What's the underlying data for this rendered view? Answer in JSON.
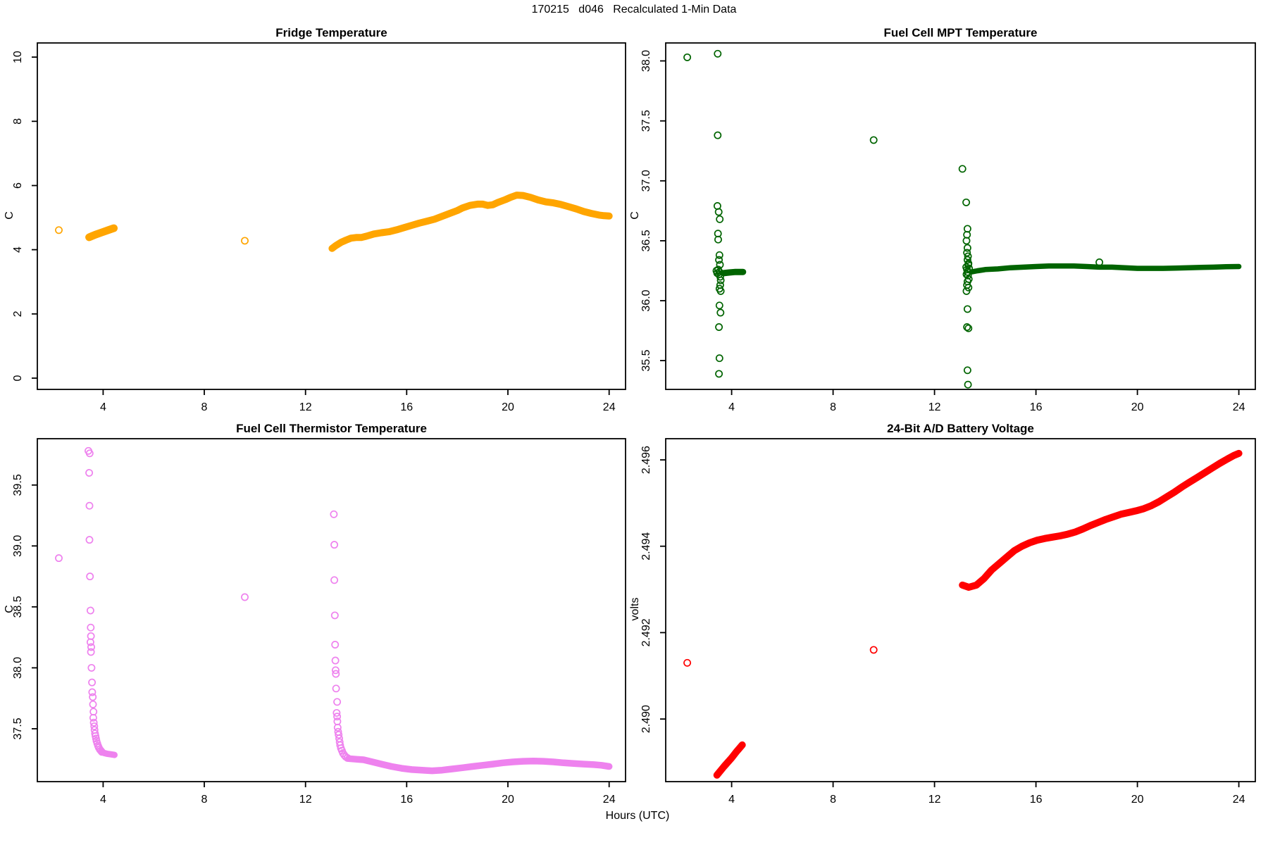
{
  "page": {
    "title": "170215   d046   Recalculated 1-Min Data",
    "xlabel": "Hours (UTC)"
  },
  "chart_data": [
    {
      "id": "fridge",
      "type": "scatter",
      "title": "Fridge Temperature",
      "ylabel": "C",
      "color": "#FFA500",
      "xlim": [
        1.4,
        24.65
      ],
      "ylim": [
        -0.35,
        10.44
      ],
      "xticks": [
        4,
        8,
        12,
        16,
        20,
        24
      ],
      "yticks": [
        0,
        2,
        4,
        6,
        8,
        10
      ],
      "ytick_labels": [
        "0",
        "2",
        "4",
        "6",
        "8",
        "10"
      ],
      "points": [
        [
          2.25,
          4.61
        ],
        [
          9.6,
          4.28
        ]
      ],
      "runs": [
        {
          "width": 11,
          "pts": [
            [
              3.45,
              4.39
            ],
            [
              3.7,
              4.47
            ],
            [
              3.95,
              4.54
            ],
            [
              4.2,
              4.61
            ],
            [
              4.42,
              4.67
            ]
          ]
        },
        {
          "width": 10,
          "pts": [
            [
              13.05,
              4.04
            ],
            [
              13.2,
              4.13
            ],
            [
              13.4,
              4.23
            ],
            [
              13.6,
              4.3
            ],
            [
              13.8,
              4.36
            ],
            [
              14.0,
              4.38
            ],
            [
              14.2,
              4.38
            ],
            [
              14.4,
              4.42
            ],
            [
              14.7,
              4.49
            ],
            [
              15.0,
              4.53
            ],
            [
              15.3,
              4.56
            ],
            [
              15.6,
              4.62
            ],
            [
              15.9,
              4.69
            ],
            [
              16.2,
              4.76
            ],
            [
              16.5,
              4.83
            ],
            [
              16.8,
              4.89
            ],
            [
              17.1,
              4.95
            ],
            [
              17.4,
              5.04
            ],
            [
              17.7,
              5.13
            ],
            [
              18.0,
              5.22
            ],
            [
              18.2,
              5.3
            ],
            [
              18.5,
              5.38
            ],
            [
              18.8,
              5.42
            ],
            [
              19.0,
              5.42
            ],
            [
              19.2,
              5.38
            ],
            [
              19.4,
              5.4
            ],
            [
              19.6,
              5.47
            ],
            [
              19.9,
              5.56
            ],
            [
              20.1,
              5.63
            ],
            [
              20.35,
              5.7
            ],
            [
              20.6,
              5.69
            ],
            [
              20.9,
              5.63
            ],
            [
              21.2,
              5.55
            ],
            [
              21.5,
              5.49
            ],
            [
              21.8,
              5.46
            ],
            [
              22.1,
              5.41
            ],
            [
              22.4,
              5.34
            ],
            [
              22.7,
              5.27
            ],
            [
              23.0,
              5.19
            ],
            [
              23.3,
              5.13
            ],
            [
              23.6,
              5.08
            ],
            [
              23.8,
              5.06
            ],
            [
              24.0,
              5.05
            ]
          ]
        }
      ]
    },
    {
      "id": "mpt",
      "type": "scatter",
      "title": "Fuel Cell MPT Temperature",
      "ylabel": "C",
      "color": "#006400",
      "xlim": [
        1.4,
        24.65
      ],
      "ylim": [
        35.26,
        38.15
      ],
      "xticks": [
        4,
        8,
        12,
        16,
        20,
        24
      ],
      "yticks": [
        35.5,
        36.0,
        36.5,
        37.0,
        37.5,
        38.0
      ],
      "ytick_labels": [
        "35.5",
        "36.0",
        "36.5",
        "37.0",
        "37.5",
        "38.0"
      ],
      "points": [
        [
          2.25,
          38.03
        ],
        [
          3.45,
          38.06
        ],
        [
          3.45,
          37.38
        ],
        [
          9.6,
          37.34
        ],
        [
          13.1,
          37.1
        ],
        [
          3.44,
          36.79
        ],
        [
          3.49,
          36.74
        ],
        [
          3.53,
          36.68
        ],
        [
          3.46,
          36.56
        ],
        [
          3.47,
          36.51
        ],
        [
          3.52,
          36.38
        ],
        [
          3.5,
          36.34
        ],
        [
          3.54,
          36.3
        ],
        [
          3.4,
          36.25
        ],
        [
          3.43,
          36.23
        ],
        [
          3.47,
          36.26
        ],
        [
          3.5,
          36.22
        ],
        [
          3.52,
          36.24
        ],
        [
          3.55,
          36.2
        ],
        [
          3.57,
          36.17
        ],
        [
          3.55,
          36.13
        ],
        [
          3.52,
          36.1
        ],
        [
          3.57,
          36.08
        ],
        [
          3.52,
          35.96
        ],
        [
          3.56,
          35.9
        ],
        [
          3.5,
          35.78
        ],
        [
          3.52,
          35.52
        ],
        [
          3.5,
          35.39
        ],
        [
          13.25,
          36.82
        ],
        [
          13.3,
          36.6
        ],
        [
          13.28,
          36.55
        ],
        [
          13.26,
          36.5
        ],
        [
          13.3,
          36.44
        ],
        [
          13.28,
          36.4
        ],
        [
          13.32,
          36.37
        ],
        [
          13.3,
          36.34
        ],
        [
          13.34,
          36.31
        ],
        [
          13.25,
          36.28
        ],
        [
          13.28,
          36.26
        ],
        [
          13.33,
          36.3
        ],
        [
          13.36,
          36.27
        ],
        [
          13.3,
          36.24
        ],
        [
          13.26,
          36.22
        ],
        [
          13.32,
          36.21
        ],
        [
          13.35,
          36.18
        ],
        [
          13.3,
          36.16
        ],
        [
          13.28,
          36.13
        ],
        [
          13.34,
          36.11
        ],
        [
          13.26,
          36.08
        ],
        [
          13.3,
          35.93
        ],
        [
          13.28,
          35.78
        ],
        [
          13.34,
          35.77
        ],
        [
          13.3,
          35.42
        ],
        [
          13.32,
          35.3
        ],
        [
          18.5,
          36.32
        ]
      ],
      "runs": [
        {
          "width": 9,
          "pts": [
            [
              3.68,
              36.23
            ],
            [
              3.9,
              36.235
            ],
            [
              4.15,
              36.24
            ],
            [
              4.45,
              36.24
            ]
          ]
        },
        {
          "width": 7.5,
          "pts": [
            [
              13.45,
              36.24
            ],
            [
              13.7,
              36.25
            ],
            [
              14.0,
              36.26
            ],
            [
              14.5,
              36.265
            ],
            [
              15.0,
              36.275
            ],
            [
              15.5,
              36.28
            ],
            [
              16.0,
              36.285
            ],
            [
              16.5,
              36.29
            ],
            [
              17.0,
              36.29
            ],
            [
              17.5,
              36.29
            ],
            [
              18.0,
              36.285
            ],
            [
              18.5,
              36.28
            ],
            [
              19.0,
              36.28
            ],
            [
              19.5,
              36.275
            ],
            [
              20.0,
              36.27
            ],
            [
              20.5,
              36.27
            ],
            [
              21.0,
              36.27
            ],
            [
              21.5,
              36.272
            ],
            [
              22.0,
              36.275
            ],
            [
              22.5,
              36.278
            ],
            [
              23.0,
              36.28
            ],
            [
              23.5,
              36.283
            ],
            [
              24.0,
              36.285
            ]
          ]
        }
      ]
    },
    {
      "id": "thermistor",
      "type": "scatter",
      "title": "Fuel Cell Thermistor Temperature",
      "ylabel": "C",
      "color": "#EE82EE",
      "xlim": [
        1.4,
        24.65
      ],
      "ylim": [
        37.066,
        39.88
      ],
      "xticks": [
        4,
        8,
        12,
        16,
        20,
        24
      ],
      "yticks": [
        37.5,
        38.0,
        38.5,
        39.0,
        39.5
      ],
      "ytick_labels": [
        "37.5",
        "38.0",
        "38.5",
        "39.0",
        "39.5"
      ],
      "points": [
        [
          2.25,
          38.9
        ],
        [
          9.6,
          38.58
        ],
        [
          3.42,
          39.78
        ],
        [
          3.47,
          39.76
        ],
        [
          3.45,
          39.6
        ],
        [
          3.46,
          39.33
        ],
        [
          3.46,
          39.05
        ],
        [
          3.48,
          38.75
        ],
        [
          3.5,
          38.47
        ],
        [
          3.51,
          38.33
        ],
        [
          3.52,
          38.26
        ],
        [
          3.5,
          38.21
        ],
        [
          3.53,
          38.17
        ],
        [
          3.52,
          38.13
        ],
        [
          3.54,
          38.0
        ],
        [
          3.56,
          37.88
        ],
        [
          3.57,
          37.8
        ],
        [
          3.59,
          37.76
        ],
        [
          3.6,
          37.7
        ],
        [
          3.62,
          37.64
        ],
        [
          3.61,
          37.59
        ],
        [
          3.63,
          37.55
        ],
        [
          3.65,
          37.52
        ],
        [
          3.66,
          37.49
        ],
        [
          3.68,
          37.46
        ],
        [
          3.7,
          37.44
        ],
        [
          3.72,
          37.42
        ],
        [
          3.74,
          37.4
        ],
        [
          3.77,
          37.38
        ],
        [
          3.8,
          37.36
        ],
        [
          3.83,
          37.345
        ],
        [
          3.87,
          37.33
        ],
        [
          3.91,
          37.32
        ],
        [
          3.95,
          37.31
        ],
        [
          13.12,
          39.26
        ],
        [
          13.14,
          39.01
        ],
        [
          13.14,
          38.72
        ],
        [
          13.16,
          38.43
        ],
        [
          13.17,
          38.19
        ],
        [
          13.18,
          38.06
        ],
        [
          13.19,
          37.98
        ],
        [
          13.2,
          37.95
        ],
        [
          13.21,
          37.83
        ],
        [
          13.25,
          37.72
        ],
        [
          13.23,
          37.63
        ],
        [
          13.25,
          37.6
        ],
        [
          13.26,
          37.56
        ],
        [
          13.27,
          37.51
        ],
        [
          13.29,
          37.475
        ],
        [
          13.31,
          37.45
        ],
        [
          13.33,
          37.42
        ],
        [
          13.35,
          37.39
        ],
        [
          13.37,
          37.365
        ],
        [
          13.4,
          37.34
        ],
        [
          13.44,
          37.32
        ],
        [
          13.48,
          37.3
        ],
        [
          13.53,
          37.285
        ],
        [
          13.59,
          37.27
        ],
        [
          13.66,
          37.26
        ]
      ],
      "runs": [
        {
          "width": 9,
          "pts": [
            [
              3.95,
              37.31
            ],
            [
              4.05,
              37.3
            ],
            [
              4.15,
              37.295
            ],
            [
              4.3,
              37.29
            ],
            [
              4.45,
              37.285
            ]
          ]
        },
        {
          "width": 9.5,
          "pts": [
            [
              13.7,
              37.255
            ],
            [
              14.0,
              37.25
            ],
            [
              14.3,
              37.245
            ],
            [
              14.6,
              37.23
            ],
            [
              15.0,
              37.21
            ],
            [
              15.4,
              37.19
            ],
            [
              15.8,
              37.175
            ],
            [
              16.2,
              37.165
            ],
            [
              16.6,
              37.16
            ],
            [
              17.0,
              37.155
            ],
            [
              17.4,
              37.16
            ],
            [
              17.8,
              37.17
            ],
            [
              18.2,
              37.18
            ],
            [
              18.6,
              37.19
            ],
            [
              19.0,
              37.2
            ],
            [
              19.4,
              37.21
            ],
            [
              19.8,
              37.22
            ],
            [
              20.2,
              37.228
            ],
            [
              20.6,
              37.233
            ],
            [
              21.0,
              37.235
            ],
            [
              21.4,
              37.233
            ],
            [
              21.8,
              37.228
            ],
            [
              22.2,
              37.22
            ],
            [
              22.6,
              37.215
            ],
            [
              23.0,
              37.21
            ],
            [
              23.4,
              37.205
            ],
            [
              23.7,
              37.2
            ],
            [
              24.0,
              37.19
            ]
          ]
        }
      ]
    },
    {
      "id": "battery",
      "type": "scatter",
      "title": "24-Bit A/D Battery Voltage",
      "ylabel": "volts",
      "color": "#FF0000",
      "xlim": [
        1.4,
        24.65
      ],
      "ylim": [
        2.48855,
        2.49649
      ],
      "xticks": [
        4,
        8,
        12,
        16,
        20,
        24
      ],
      "yticks": [
        2.49,
        2.492,
        2.494,
        2.496
      ],
      "ytick_labels": [
        "2.490",
        "2.492",
        "2.494",
        "2.496"
      ],
      "points": [
        [
          2.25,
          2.4913
        ],
        [
          9.6,
          2.4916
        ]
      ],
      "runs": [
        {
          "width": 10,
          "pts": [
            [
              3.42,
              2.4887
            ],
            [
              3.7,
              2.4889
            ],
            [
              4.0,
              2.4891
            ],
            [
              4.2,
              2.48925
            ],
            [
              4.42,
              2.4894
            ]
          ]
        },
        {
          "width": 10,
          "pts": [
            [
              13.1,
              2.4931
            ],
            [
              13.35,
              2.49305
            ],
            [
              13.65,
              2.4931
            ],
            [
              13.95,
              2.49325
            ],
            [
              14.25,
              2.49345
            ],
            [
              14.55,
              2.4936
            ],
            [
              14.85,
              2.49375
            ],
            [
              15.15,
              2.4939
            ],
            [
              15.45,
              2.494
            ],
            [
              15.75,
              2.49408
            ],
            [
              16.05,
              2.49414
            ],
            [
              16.35,
              2.49418
            ],
            [
              16.65,
              2.49421
            ],
            [
              16.95,
              2.49424
            ],
            [
              17.25,
              2.49428
            ],
            [
              17.55,
              2.49433
            ],
            [
              17.85,
              2.4944
            ],
            [
              18.15,
              2.49448
            ],
            [
              18.45,
              2.49455
            ],
            [
              18.75,
              2.49462
            ],
            [
              19.05,
              2.49468
            ],
            [
              19.35,
              2.49474
            ],
            [
              19.65,
              2.49478
            ],
            [
              19.95,
              2.49482
            ],
            [
              20.25,
              2.49487
            ],
            [
              20.55,
              2.49494
            ],
            [
              20.85,
              2.49503
            ],
            [
              21.15,
              2.49514
            ],
            [
              21.45,
              2.49525
            ],
            [
              21.75,
              2.49537
            ],
            [
              22.05,
              2.49548
            ],
            [
              22.35,
              2.49559
            ],
            [
              22.65,
              2.4957
            ],
            [
              22.95,
              2.49581
            ],
            [
              23.25,
              2.49592
            ],
            [
              23.55,
              2.49602
            ],
            [
              23.8,
              2.4961
            ],
            [
              24.0,
              2.49615
            ]
          ]
        }
      ]
    }
  ]
}
